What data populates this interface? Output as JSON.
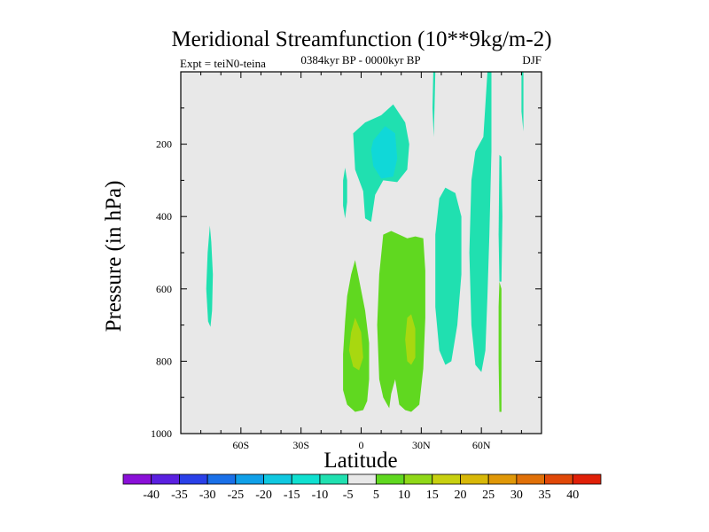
{
  "chart_data": {
    "type": "contour",
    "title": "Meridional Streamfunction (10**9kg/m-2)",
    "left_label": "Expt = teiN0-teina",
    "center_label": "0384kyr BP - 0000kyr BP",
    "right_label": "DJF",
    "xlabel": "Latitude",
    "ylabel": "Pressure (in hPa)",
    "xlim": [
      -90,
      90
    ],
    "ylim": [
      0,
      1000
    ],
    "y_reversed": true,
    "x_ticks": [
      {
        "value": -60,
        "label": "60S"
      },
      {
        "value": -30,
        "label": "30S"
      },
      {
        "value": 0,
        "label": "0"
      },
      {
        "value": 30,
        "label": "30N"
      },
      {
        "value": 60,
        "label": "60N"
      }
    ],
    "y_ticks": [
      {
        "value": 200,
        "label": "200"
      },
      {
        "value": 400,
        "label": "400"
      },
      {
        "value": 600,
        "label": "600"
      },
      {
        "value": 800,
        "label": "800"
      },
      {
        "value": 1000,
        "label": "1000"
      }
    ],
    "background_color": "#e8e8e8",
    "colorbar": {
      "levels": [
        "-40",
        "-35",
        "-30",
        "-25",
        "-20",
        "-15",
        "-10",
        "-5",
        "5",
        "10",
        "15",
        "20",
        "25",
        "30",
        "35",
        "40"
      ],
      "colors": [
        "#8a10d8",
        "#5a20e0",
        "#2a40e8",
        "#1a70e8",
        "#10a0e8",
        "#10c8e0",
        "#10e0d0",
        "#20e0b0",
        "#e8e8e8",
        "#60d820",
        "#90d818",
        "#c8d010",
        "#d8b808",
        "#e09808",
        "#e07008",
        "#e04808",
        "#e02008"
      ]
    },
    "contour_regions": [
      {
        "name": "region-sh-subtropics-neg",
        "color": "#20e0b0",
        "points": [
          [
            -75.5,
            425
          ],
          [
            -74.8,
            470
          ],
          [
            -74.0,
            560
          ],
          [
            -74.4,
            660
          ],
          [
            -75.2,
            705
          ],
          [
            -76.4,
            690
          ],
          [
            -77.3,
            600
          ],
          [
            -76.6,
            500
          ]
        ]
      },
      {
        "name": "region-equator-upper-neg",
        "color": "#20e0b0",
        "points": [
          [
            2,
            140
          ],
          [
            10,
            120
          ],
          [
            16,
            90
          ],
          [
            22,
            140
          ],
          [
            24,
            200
          ],
          [
            23,
            270
          ],
          [
            18,
            305
          ],
          [
            11,
            300
          ],
          [
            7,
            340
          ],
          [
            5,
            415
          ],
          [
            2,
            405
          ],
          [
            1,
            330
          ],
          [
            -3,
            270
          ],
          [
            -4,
            170
          ]
        ]
      },
      {
        "name": "region-equator-upper-core",
        "color": "#10d8d8",
        "points": [
          [
            6,
            190
          ],
          [
            12,
            150
          ],
          [
            17,
            170
          ],
          [
            18,
            240
          ],
          [
            16,
            290
          ],
          [
            10,
            295
          ],
          [
            6,
            260
          ],
          [
            5,
            215
          ]
        ]
      },
      {
        "name": "region-equator-thin-neg",
        "color": "#20e0b0",
        "points": [
          [
            -8,
            265
          ],
          [
            -7,
            300
          ],
          [
            -7,
            360
          ],
          [
            -8,
            405
          ],
          [
            -9,
            370
          ],
          [
            -9,
            300
          ]
        ]
      },
      {
        "name": "region-nh-midlat-neg",
        "color": "#20e0b0",
        "points": [
          [
            42,
            320
          ],
          [
            47,
            335
          ],
          [
            50,
            400
          ],
          [
            50,
            560
          ],
          [
            48,
            700
          ],
          [
            45,
            800
          ],
          [
            42,
            810
          ],
          [
            39,
            770
          ],
          [
            37,
            650
          ],
          [
            37,
            450
          ],
          [
            39,
            350
          ]
        ]
      },
      {
        "name": "region-nh-highlat-neg",
        "color": "#20e0b0",
        "points": [
          [
            63,
            0
          ],
          [
            65,
            0
          ],
          [
            65,
            220
          ],
          [
            64,
            450
          ],
          [
            63,
            620
          ],
          [
            62,
            770
          ],
          [
            60,
            830
          ],
          [
            57,
            810
          ],
          [
            55,
            700
          ],
          [
            54,
            500
          ],
          [
            55,
            300
          ],
          [
            57,
            220
          ],
          [
            61,
            180
          ]
        ]
      },
      {
        "name": "region-nh-subtropics-top-neg",
        "color": "#20e0b0",
        "points": [
          [
            36,
            0
          ],
          [
            37,
            0
          ],
          [
            36.6,
            100
          ],
          [
            36.2,
            180
          ],
          [
            35.6,
            100
          ]
        ]
      },
      {
        "name": "region-nh-highlat-top-neg",
        "color": "#20e0b0",
        "points": [
          [
            80,
            0
          ],
          [
            81,
            0
          ],
          [
            81,
            165
          ],
          [
            80,
            110
          ]
        ]
      },
      {
        "name": "region-equator-south-pos",
        "color": "#60d820",
        "points": [
          [
            -3,
            520
          ],
          [
            -1,
            575
          ],
          [
            2,
            660
          ],
          [
            4,
            750
          ],
          [
            4,
            850
          ],
          [
            3,
            910
          ],
          [
            1,
            935
          ],
          [
            -3,
            940
          ],
          [
            -7,
            920
          ],
          [
            -9,
            880
          ],
          [
            -9,
            780
          ],
          [
            -8,
            690
          ],
          [
            -7,
            620
          ],
          [
            -5,
            560
          ]
        ]
      },
      {
        "name": "region-equator-south-core",
        "color": "#a8d810",
        "points": [
          [
            -3,
            680
          ],
          [
            0,
            720
          ],
          [
            1,
            790
          ],
          [
            -1,
            825
          ],
          [
            -4,
            815
          ],
          [
            -6,
            770
          ],
          [
            -5,
            720
          ]
        ]
      },
      {
        "name": "region-equator-north-pos",
        "color": "#60d820",
        "points": [
          [
            11,
            450
          ],
          [
            15,
            440
          ],
          [
            19,
            450
          ],
          [
            23,
            460
          ],
          [
            27,
            455
          ],
          [
            31,
            460
          ],
          [
            32,
            550
          ],
          [
            32,
            680
          ],
          [
            31,
            820
          ],
          [
            29,
            920
          ],
          [
            25,
            940
          ],
          [
            22,
            935
          ],
          [
            19,
            920
          ],
          [
            17,
            850
          ],
          [
            15,
            890
          ],
          [
            14,
            930
          ],
          [
            11,
            900
          ],
          [
            9,
            850
          ],
          [
            8,
            700
          ],
          [
            9,
            560
          ]
        ]
      },
      {
        "name": "region-equator-north-core",
        "color": "#a8d810",
        "points": [
          [
            23,
            680
          ],
          [
            25,
            670
          ],
          [
            27,
            710
          ],
          [
            27,
            790
          ],
          [
            25,
            810
          ],
          [
            23,
            800
          ],
          [
            22,
            740
          ]
        ]
      },
      {
        "name": "region-nh-highlat-thin-pos",
        "color": "#60d820",
        "points": [
          [
            69,
            580
          ],
          [
            70,
            600
          ],
          [
            70,
            800
          ],
          [
            70,
            940
          ],
          [
            69,
            940
          ],
          [
            68.6,
            800
          ],
          [
            68.6,
            650
          ]
        ]
      },
      {
        "name": "region-nh-highlat-thin-neg",
        "color": "#20e0b0",
        "points": [
          [
            69,
            230
          ],
          [
            70,
            235
          ],
          [
            70.5,
            400
          ],
          [
            70,
            580
          ],
          [
            69,
            580
          ],
          [
            68.6,
            450
          ]
        ]
      }
    ]
  }
}
